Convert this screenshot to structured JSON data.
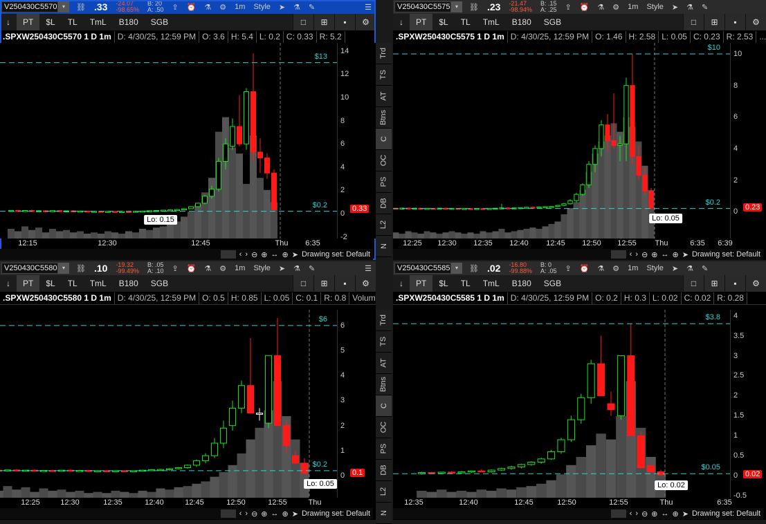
{
  "common": {
    "dropdown": "▾",
    "link": "⛓",
    "share": "⇪",
    "alert": "⏰",
    "flask": "⚗",
    "gear": "⚙",
    "interval": "1m",
    "style": "Style",
    "cursor": "➤",
    "draw": "✎",
    "menu": "☰",
    "pin": "↓",
    "pt": "PT",
    "sl": "$L",
    "tl": "TL",
    "tml": "TmL",
    "b180": "B180",
    "sgb": "SGB",
    "single": "□",
    "grid": "⊞",
    "small": "▪",
    "zoom_out": "⊖",
    "zoom_in": "⊕",
    "fit": "↔",
    "crosshair": "⊕",
    "pointer": "➤",
    "drawing_set": "Drawing set: Default",
    "left": "‹",
    "right": "›",
    "lo_prefix": "Lo: "
  },
  "side_tabs": [
    "Trd",
    "TS",
    "AT",
    "Btns",
    "C",
    "OC",
    "PS",
    "DB",
    "L2",
    "N"
  ],
  "side_active": "C",
  "charts": [
    {
      "symbol": "V250430C5570",
      "last": ".33",
      "change": "-24.07",
      "change_pct": "-98.65%",
      "bid": "B: 20",
      "ask": "A: .50",
      "active": true,
      "title": ".SPXW250430C5570 1 D 1m",
      "date": "D: 4/30/25, 12:59 PM",
      "o": "O: 3.6",
      "h": "H: 5.4",
      "l": "L: 0.2",
      "c": "C: 0.33",
      "r": "R: 5.2",
      "extra": "",
      "ylim": [
        -2.14,
        14.7
      ],
      "yticks": [
        14,
        12,
        10,
        8,
        6,
        4,
        2,
        0,
        -2
      ],
      "levels": [
        {
          "value": 13,
          "label": "$13"
        },
        {
          "value": 0.2,
          "label": "$0.2"
        }
      ],
      "current": 0.33,
      "current_label": "0.33",
      "lo": "0.15",
      "times": [
        "12:15",
        "12:30",
        "12:45",
        "Thu",
        "6:35"
      ],
      "candles": [
        [
          0.2,
          0.3,
          0.15,
          0.28
        ],
        [
          0.28,
          0.32,
          0.2,
          0.22
        ],
        [
          0.22,
          0.3,
          0.2,
          0.27
        ],
        [
          0.27,
          0.35,
          0.2,
          0.2
        ],
        [
          0.2,
          0.3,
          0.18,
          0.25
        ],
        [
          0.25,
          0.3,
          0.2,
          0.2
        ],
        [
          0.2,
          0.28,
          0.15,
          0.26
        ],
        [
          0.26,
          0.3,
          0.2,
          0.2
        ],
        [
          0.2,
          0.25,
          0.15,
          0.24
        ],
        [
          0.24,
          0.3,
          0.2,
          0.2
        ],
        [
          0.2,
          0.25,
          0.15,
          0.22
        ],
        [
          0.22,
          0.25,
          0.15,
          0.18
        ],
        [
          0.18,
          0.22,
          0.15,
          0.2
        ],
        [
          0.2,
          0.22,
          0.15,
          0.16
        ],
        [
          0.16,
          0.2,
          0.12,
          0.19
        ],
        [
          0.19,
          0.22,
          0.15,
          0.16
        ],
        [
          0.16,
          0.2,
          0.12,
          0.18
        ],
        [
          0.18,
          0.22,
          0.15,
          0.17
        ],
        [
          0.17,
          0.22,
          0.15,
          0.2
        ],
        [
          0.2,
          0.25,
          0.15,
          0.22
        ],
        [
          0.22,
          0.28,
          0.2,
          0.25
        ],
        [
          0.25,
          0.3,
          0.2,
          0.27
        ],
        [
          0.27,
          0.32,
          0.22,
          0.3
        ],
        [
          0.3,
          0.35,
          0.25,
          0.32
        ],
        [
          0.32,
          0.38,
          0.28,
          0.35
        ],
        [
          0.35,
          0.45,
          0.3,
          0.42
        ],
        [
          0.42,
          0.65,
          0.4,
          0.6
        ],
        [
          0.6,
          0.95,
          0.55,
          0.9
        ],
        [
          0.9,
          1.6,
          0.8,
          1.5
        ],
        [
          1.5,
          2.4,
          1.3,
          2.1
        ],
        [
          2.1,
          4.8,
          1.9,
          4.5
        ],
        [
          4.5,
          6.5,
          3.8,
          6.0
        ],
        [
          5.8,
          8.2,
          5.5,
          7.5
        ],
        [
          7.5,
          10.2,
          5.8,
          6.0
        ],
        [
          6.0,
          10.8,
          5.5,
          10.5
        ],
        [
          10.5,
          13.8,
          4.5,
          5.3
        ],
        [
          5.3,
          6.5,
          3.5,
          4.8
        ],
        [
          4.8,
          5.2,
          3.0,
          3.5
        ],
        [
          3.5,
          3.8,
          0.2,
          0.33
        ]
      ],
      "volume": [
        8,
        6,
        10,
        7,
        9,
        5,
        8,
        6,
        7,
        5,
        6,
        4,
        5,
        4,
        6,
        5,
        4,
        6,
        5,
        8,
        7,
        9,
        10,
        12,
        14,
        18,
        22,
        28,
        38,
        50,
        88,
        100,
        75,
        70,
        45,
        85,
        50,
        40,
        30
      ]
    },
    {
      "symbol": "V250430C5575",
      "last": ".23",
      "change": "-21.47",
      "change_pct": "-98.94%",
      "bid": "B: .15",
      "ask": "A: .25",
      "active": false,
      "title": ".SPXW250430C5575 1 D 1m",
      "date": "D: 4/30/25, 12:59 PM",
      "o": "O: 1.46",
      "h": "H: 2.58",
      "l": "L: 0.05",
      "c": "C: 0.23",
      "r": "R: 2.53",
      "extra": "...",
      "ylim": [
        -1.7,
        10.7
      ],
      "yticks": [
        10,
        8,
        6,
        4,
        2,
        0
      ],
      "levels": [
        {
          "value": 10,
          "label": "$10"
        },
        {
          "value": 0.2,
          "label": "$0.2"
        }
      ],
      "current": 0.23,
      "current_label": "0.23",
      "lo": "0.05",
      "times": [
        "12:25",
        "12:30",
        "12:35",
        "12:40",
        "12:45",
        "12:50",
        "12:55",
        "Thu",
        "6:35",
        "6:39"
      ],
      "candles": [
        [
          0.2,
          0.25,
          0.15,
          0.22
        ],
        [
          0.22,
          0.25,
          0.18,
          0.2
        ],
        [
          0.2,
          0.24,
          0.16,
          0.23
        ],
        [
          0.23,
          0.26,
          0.2,
          0.2
        ],
        [
          0.2,
          0.23,
          0.17,
          0.22
        ],
        [
          0.22,
          0.25,
          0.18,
          0.19
        ],
        [
          0.19,
          0.22,
          0.16,
          0.21
        ],
        [
          0.21,
          0.24,
          0.18,
          0.2
        ],
        [
          0.2,
          0.22,
          0.16,
          0.22
        ],
        [
          0.22,
          0.25,
          0.2,
          0.2
        ],
        [
          0.2,
          0.23,
          0.17,
          0.21
        ],
        [
          0.21,
          0.24,
          0.18,
          0.19
        ],
        [
          0.19,
          0.22,
          0.15,
          0.2
        ],
        [
          0.2,
          0.22,
          0.17,
          0.18
        ],
        [
          0.18,
          0.2,
          0.15,
          0.2
        ],
        [
          0.2,
          0.22,
          0.17,
          0.19
        ],
        [
          0.19,
          0.21,
          0.16,
          0.2
        ],
        [
          0.2,
          0.23,
          0.18,
          0.22
        ],
        [
          0.22,
          0.5,
          0.2,
          0.24
        ],
        [
          0.24,
          0.27,
          0.2,
          0.22
        ],
        [
          0.22,
          0.25,
          0.2,
          0.24
        ],
        [
          0.24,
          0.28,
          0.22,
          0.26
        ],
        [
          0.26,
          0.3,
          0.22,
          0.28
        ],
        [
          0.28,
          0.32,
          0.24,
          0.27
        ],
        [
          0.27,
          0.3,
          0.24,
          0.3
        ],
        [
          0.3,
          0.34,
          0.26,
          0.32
        ],
        [
          0.32,
          0.36,
          0.28,
          0.33
        ],
        [
          0.33,
          0.42,
          0.3,
          0.4
        ],
        [
          0.4,
          0.55,
          0.35,
          0.5
        ],
        [
          0.5,
          0.8,
          0.45,
          0.7
        ],
        [
          0.7,
          1.2,
          0.6,
          1.1
        ],
        [
          1.1,
          1.8,
          1.0,
          1.7
        ],
        [
          1.7,
          3.2,
          1.5,
          3.0
        ],
        [
          3.0,
          4.2,
          2.5,
          4.0
        ],
        [
          4.0,
          5.8,
          3.5,
          5.5
        ],
        [
          5.5,
          6.2,
          3.8,
          4.5
        ],
        [
          4.5,
          7.5,
          4.0,
          4.2
        ],
        [
          4.2,
          4.8,
          3.2,
          4.3
        ],
        [
          4.3,
          8.5,
          3.2,
          8.0
        ],
        [
          8.0,
          10.0,
          3.0,
          3.5
        ],
        [
          3.5,
          4.2,
          2.0,
          2.3
        ],
        [
          2.3,
          2.8,
          1.0,
          1.3
        ],
        [
          1.3,
          1.5,
          0.2,
          0.23
        ]
      ],
      "volume": [
        4,
        5,
        4,
        6,
        5,
        4,
        6,
        5,
        4,
        5,
        6,
        5,
        4,
        5,
        4,
        6,
        5,
        6,
        8,
        5,
        6,
        7,
        8,
        9,
        8,
        10,
        12,
        14,
        20,
        25,
        30,
        40,
        55,
        70,
        80,
        85,
        95,
        88,
        100,
        92,
        80,
        60,
        40
      ]
    },
    {
      "symbol": "V250430C5580",
      "last": ".10",
      "change": "-19.32",
      "change_pct": "-99.49%",
      "bid": "B: .05",
      "ask": "A: .10",
      "active": false,
      "title": ".SPXW250430C5580 1 D 1m",
      "date": "D: 4/30/25, 12:59 PM",
      "o": "O: 0.5",
      "h": "H: 0.85",
      "l": "L: 0.05",
      "c": "C: 0.1",
      "r": "R: 0.8",
      "extra": "Volume",
      "ylim": [
        -0.88,
        6.63
      ],
      "yticks": [
        6,
        5,
        4,
        3,
        2,
        1,
        0
      ],
      "levels": [
        {
          "value": 6,
          "label": "$6"
        },
        {
          "value": 0.2,
          "label": "$0.2"
        }
      ],
      "current": 0.1,
      "current_label": "0.1",
      "lo": "0.05",
      "times": [
        "12:25",
        "12:30",
        "12:35",
        "12:40",
        "12:45",
        "12:50",
        "12:55",
        "Thu"
      ],
      "candles": [
        [
          0.2,
          0.25,
          0.15,
          0.22
        ],
        [
          0.22,
          0.25,
          0.18,
          0.2
        ],
        [
          0.2,
          0.24,
          0.16,
          0.23
        ],
        [
          0.23,
          0.26,
          0.2,
          0.2
        ],
        [
          0.2,
          0.23,
          0.17,
          0.22
        ],
        [
          0.22,
          0.25,
          0.18,
          0.19
        ],
        [
          0.19,
          0.22,
          0.16,
          0.21
        ],
        [
          0.21,
          0.24,
          0.18,
          0.2
        ],
        [
          0.2,
          0.22,
          0.16,
          0.22
        ],
        [
          0.22,
          0.25,
          0.2,
          0.2
        ],
        [
          0.2,
          0.23,
          0.17,
          0.21
        ],
        [
          0.21,
          0.24,
          0.18,
          0.19
        ],
        [
          0.19,
          0.22,
          0.15,
          0.2
        ],
        [
          0.2,
          0.22,
          0.17,
          0.18
        ],
        [
          0.18,
          0.2,
          0.15,
          0.2
        ],
        [
          0.2,
          0.22,
          0.17,
          0.19
        ],
        [
          0.19,
          0.21,
          0.16,
          0.2
        ],
        [
          0.2,
          0.23,
          0.18,
          0.22
        ],
        [
          0.22,
          0.26,
          0.2,
          0.24
        ],
        [
          0.24,
          0.28,
          0.2,
          0.25
        ],
        [
          0.25,
          0.3,
          0.2,
          0.28
        ],
        [
          0.28,
          0.35,
          0.25,
          0.32
        ],
        [
          0.32,
          0.45,
          0.28,
          0.42
        ],
        [
          0.42,
          0.65,
          0.35,
          0.6
        ],
        [
          0.6,
          0.9,
          0.5,
          0.8
        ],
        [
          0.8,
          1.5,
          0.7,
          1.3
        ],
        [
          1.3,
          2.2,
          1.1,
          1.9
        ],
        [
          2.0,
          3.0,
          1.8,
          2.7
        ],
        [
          2.7,
          3.8,
          2.5,
          3.6
        ],
        [
          3.6,
          5.5,
          2.5,
          2.5
        ],
        [
          2.45,
          2.7,
          2.2,
          2.5
        ],
        [
          2.1,
          4.8,
          1.9,
          4.8
        ],
        [
          4.8,
          6.3,
          2.0,
          2.0
        ],
        [
          2.0,
          2.2,
          0.9,
          1.2
        ],
        [
          0.8,
          1.0,
          0.5,
          0.5
        ],
        [
          0.5,
          0.7,
          0.1,
          0.1
        ]
      ],
      "volume": [
        8,
        6,
        10,
        7,
        9,
        5,
        8,
        6,
        7,
        5,
        6,
        4,
        5,
        4,
        6,
        5,
        4,
        6,
        5,
        8,
        7,
        9,
        10,
        12,
        14,
        18,
        22,
        28,
        38,
        50,
        60,
        75,
        100,
        70,
        50,
        30
      ]
    },
    {
      "symbol": "V250430C5585",
      "last": ".02",
      "change": "-16.80",
      "change_pct": "-99.88%",
      "bid": "B: 0",
      "ask": "A: .05",
      "active": false,
      "title": ".SPXW250430C5585 1 D 1m",
      "date": "D: 4/30/25, 12:59 PM",
      "o": "O: 0.2",
      "h": "H: 0.3",
      "l": "L: 0.02",
      "c": "C: 0.02",
      "r": "R: 0.28",
      "extra": "",
      "ylim": [
        -0.55,
        4.15
      ],
      "yticks": [
        4,
        3.5,
        3,
        2.5,
        2,
        1.5,
        1,
        0.5,
        0,
        -0.5
      ],
      "levels": [
        {
          "value": 3.8,
          "label": "$3.8"
        },
        {
          "value": 0.05,
          "label": "$0.05"
        }
      ],
      "current": 0.02,
      "current_label": "0.02",
      "lo": "0.02",
      "times": [
        "12:35",
        "12:40",
        "12:45",
        "12:50",
        "12:55",
        "Thu",
        "6:35"
      ],
      "candles": [
        [
          0.05,
          0.1,
          0.03,
          0.08
        ],
        [
          0.08,
          0.1,
          0.05,
          0.06
        ],
        [
          0.06,
          0.1,
          0.04,
          0.09
        ],
        [
          0.09,
          0.12,
          0.06,
          0.07
        ],
        [
          0.07,
          0.12,
          0.05,
          0.1
        ],
        [
          0.1,
          0.13,
          0.07,
          0.12
        ],
        [
          0.12,
          0.16,
          0.1,
          0.1
        ],
        [
          0.1,
          0.16,
          0.08,
          0.14
        ],
        [
          0.14,
          0.2,
          0.12,
          0.18
        ],
        [
          0.18,
          0.25,
          0.15,
          0.22
        ],
        [
          0.22,
          0.3,
          0.18,
          0.28
        ],
        [
          0.28,
          0.36,
          0.25,
          0.34
        ],
        [
          0.34,
          0.45,
          0.3,
          0.42
        ],
        [
          0.42,
          0.65,
          0.4,
          0.6
        ],
        [
          0.6,
          0.95,
          0.55,
          0.9
        ],
        [
          0.9,
          1.5,
          0.85,
          1.4
        ],
        [
          1.4,
          2.05,
          1.3,
          1.95
        ],
        [
          1.95,
          2.9,
          1.8,
          2.8
        ],
        [
          2.8,
          3.5,
          2.0,
          2.0
        ],
        [
          1.8,
          2.1,
          1.5,
          1.65
        ],
        [
          1.5,
          3.0,
          1.4,
          3.0
        ],
        [
          3.0,
          3.8,
          1.0,
          1.0
        ],
        [
          1.0,
          1.1,
          0.2,
          0.2
        ],
        [
          0.25,
          0.3,
          0.1,
          0.1
        ],
        [
          0.1,
          0.15,
          0.02,
          0.02
        ]
      ],
      "volume": [
        6,
        5,
        7,
        5,
        6,
        5,
        7,
        6,
        8,
        7,
        9,
        10,
        12,
        15,
        20,
        28,
        35,
        45,
        55,
        50,
        70,
        100,
        60,
        35,
        20
      ]
    }
  ]
}
